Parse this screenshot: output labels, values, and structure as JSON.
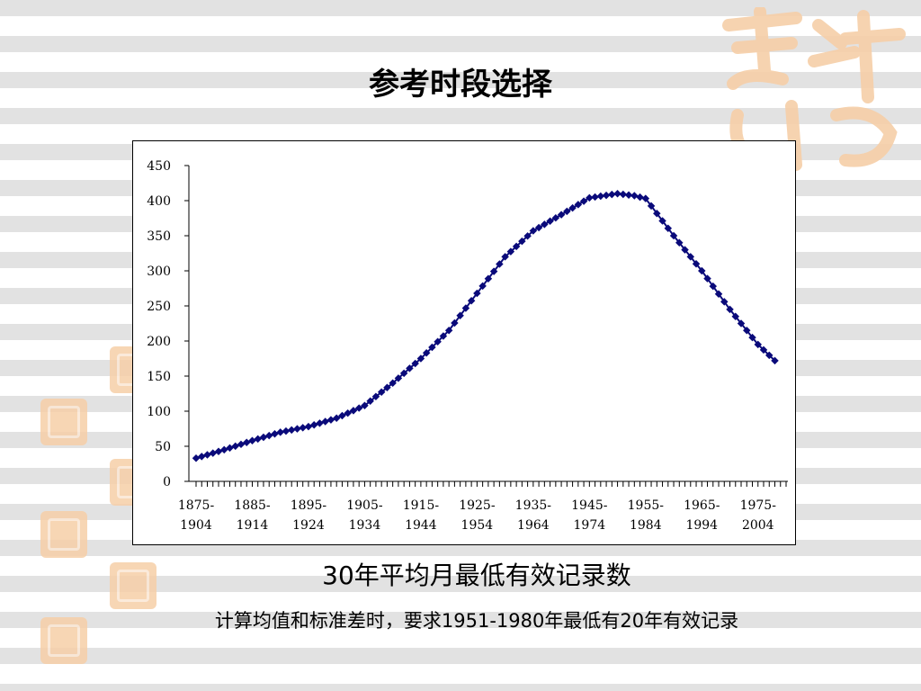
{
  "slide": {
    "title": "参考时段选择",
    "caption": "30年平均月最低有效记录数",
    "note": "计算均值和标准差时，要求1951-1980年最低有20年有效记录"
  },
  "colors": {
    "series": "#0a0a7a",
    "axis": "#000000",
    "accent_seal": "#f6cfa8"
  },
  "chart_data": {
    "type": "line",
    "title": "",
    "xlabel": "",
    "ylabel": "",
    "ylim": [
      0,
      450
    ],
    "yticks": [
      0,
      50,
      100,
      150,
      200,
      250,
      300,
      350,
      400,
      450
    ],
    "tick_labels": [
      [
        "1875-",
        "1904"
      ],
      [
        "1885-",
        "1914"
      ],
      [
        "1895-",
        "1924"
      ],
      [
        "1905-",
        "1934"
      ],
      [
        "1915-",
        "1944"
      ],
      [
        "1925-",
        "1954"
      ],
      [
        "1935-",
        "1964"
      ],
      [
        "1945-",
        "1974"
      ],
      [
        "1955-",
        "1984"
      ],
      [
        "1965-",
        "1994"
      ],
      [
        "1975-",
        "2004"
      ]
    ],
    "x_start": 1875,
    "x_end": 1980,
    "tick_years": [
      1875,
      1885,
      1895,
      1905,
      1915,
      1925,
      1935,
      1945,
      1955,
      1965,
      1975
    ],
    "grid": false,
    "legend": "none",
    "anchors": [
      [
        1875,
        33
      ],
      [
        1880,
        45
      ],
      [
        1885,
        58
      ],
      [
        1890,
        70
      ],
      [
        1895,
        78
      ],
      [
        1900,
        90
      ],
      [
        1905,
        108
      ],
      [
        1910,
        140
      ],
      [
        1915,
        175
      ],
      [
        1920,
        215
      ],
      [
        1925,
        268
      ],
      [
        1930,
        320
      ],
      [
        1935,
        357
      ],
      [
        1940,
        380
      ],
      [
        1945,
        404
      ],
      [
        1950,
        410
      ],
      [
        1953,
        407
      ],
      [
        1955,
        403
      ],
      [
        1960,
        350
      ],
      [
        1965,
        300
      ],
      [
        1970,
        245
      ],
      [
        1975,
        195
      ],
      [
        1978,
        172
      ]
    ]
  }
}
